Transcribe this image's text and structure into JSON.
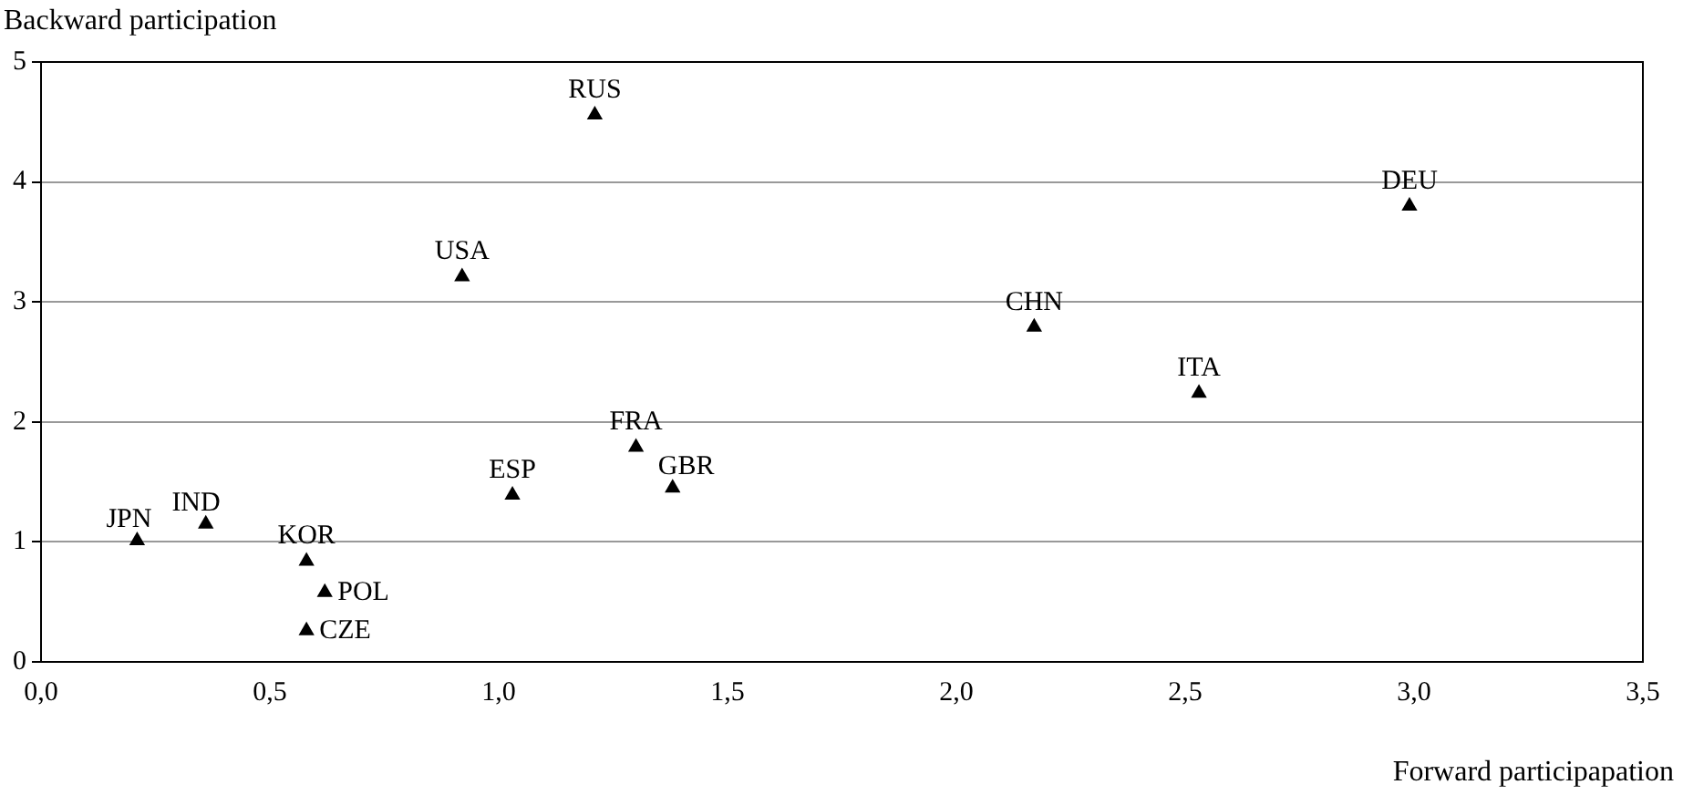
{
  "chart_data": {
    "type": "scatter",
    "xlabel": "Forward participapation",
    "ylabel": "Backward participation",
    "x": [
      0.21,
      0.36,
      0.58,
      0.62,
      0.58,
      1.03,
      0.92,
      1.21,
      1.3,
      1.38,
      2.17,
      2.53,
      2.99
    ],
    "values": [
      1.01,
      1.15,
      0.84,
      0.58,
      0.26,
      1.39,
      3.21,
      4.56,
      1.79,
      1.45,
      2.79,
      2.24,
      3.8
    ],
    "color": "#000000",
    "marker": "triangle",
    "annotations": [
      {
        "text": "JPN",
        "x": 0.21,
        "y": 1.01
      },
      {
        "text": "IND",
        "x": 0.36,
        "y": 1.15
      },
      {
        "text": "KOR",
        "x": 0.58,
        "y": 0.84
      },
      {
        "text": "POL",
        "x": 0.62,
        "y": 0.58
      },
      {
        "text": "CZE",
        "x": 0.58,
        "y": 0.26
      },
      {
        "text": "ESP",
        "x": 1.03,
        "y": 1.39
      },
      {
        "text": "USA",
        "x": 0.92,
        "y": 3.21
      },
      {
        "text": "RUS",
        "x": 1.21,
        "y": 4.56
      },
      {
        "text": "FRA",
        "x": 1.3,
        "y": 1.79
      },
      {
        "text": "GBR",
        "x": 1.38,
        "y": 1.45
      },
      {
        "text": "CHN",
        "x": 2.17,
        "y": 2.79
      },
      {
        "text": "ITA",
        "x": 2.53,
        "y": 2.24
      },
      {
        "text": "DEU",
        "x": 2.99,
        "y": 3.8
      }
    ],
    "xlim": [
      0,
      3.5
    ],
    "xticks": [
      {
        "value": 0,
        "label": "0,0"
      },
      {
        "value": 0.5,
        "label": "0,5"
      },
      {
        "value": 1,
        "label": "1,0"
      },
      {
        "value": 1.5,
        "label": "1,5"
      },
      {
        "value": 2,
        "label": "2,0"
      },
      {
        "value": 2.5,
        "label": "2,5"
      },
      {
        "value": 3,
        "label": "3,0"
      },
      {
        "value": 3.5,
        "label": "3,5"
      }
    ],
    "ylim": [
      0,
      5
    ],
    "yticks": [
      0,
      1,
      2,
      3,
      4,
      5
    ],
    "grid": "y",
    "legend": false
  }
}
